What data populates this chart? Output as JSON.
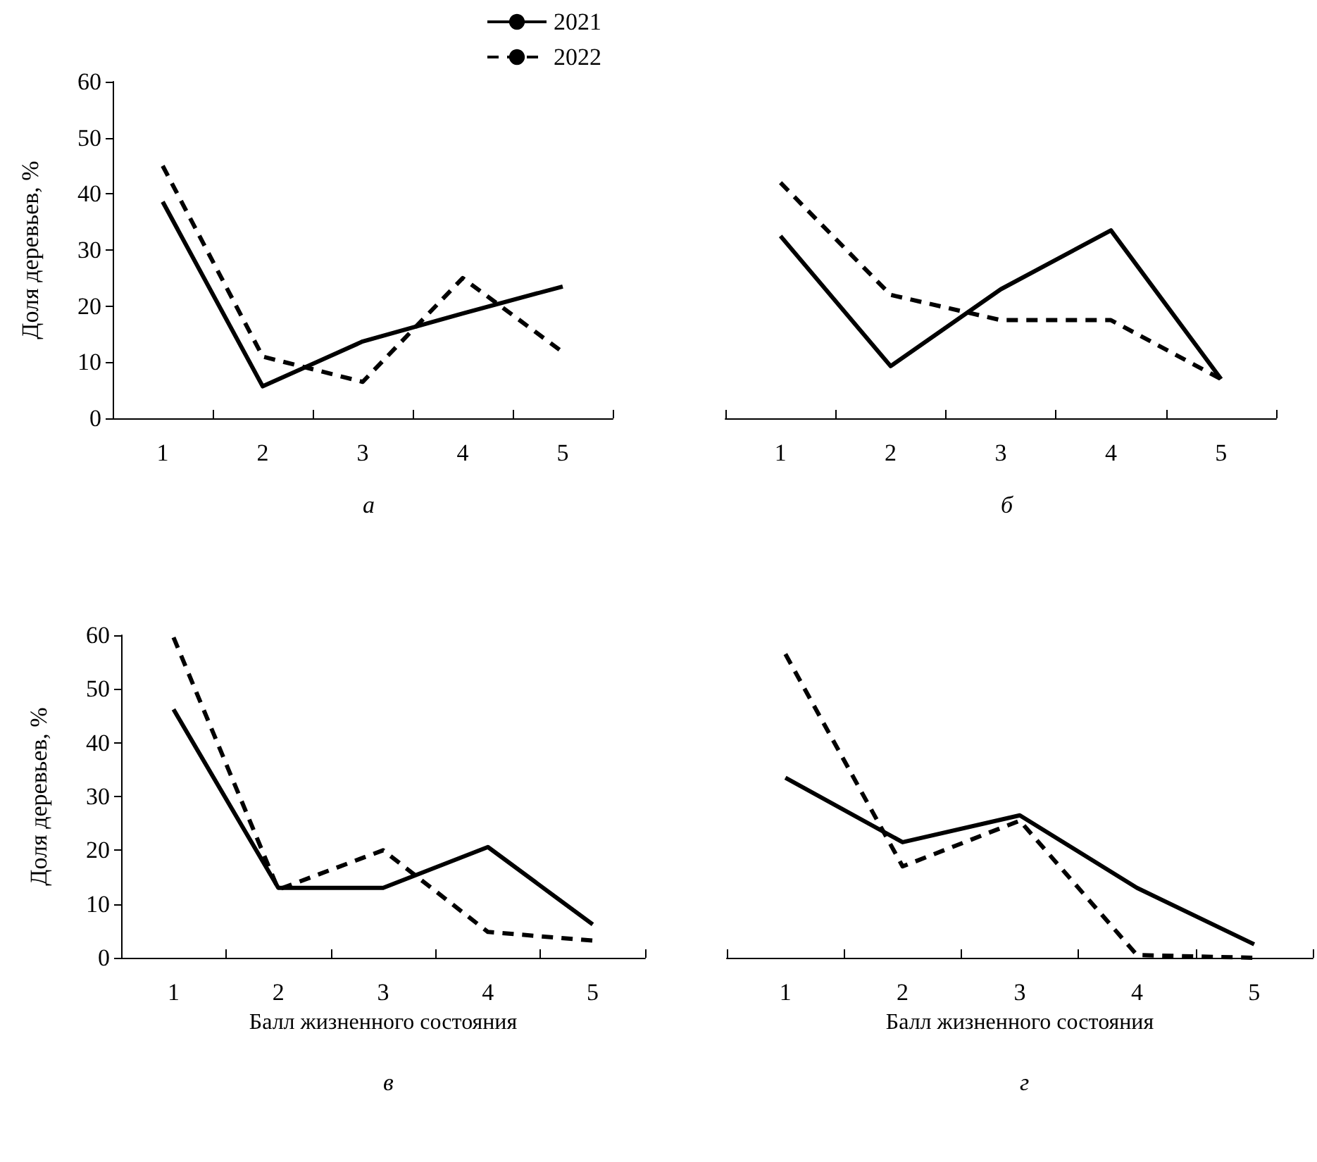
{
  "chart_data": [
    {
      "type": "line",
      "title": "а",
      "ylabel": "Доля деревьев, %",
      "categories": [
        "1",
        "2",
        "3",
        "4",
        "5"
      ],
      "ylim": [
        0,
        60
      ],
      "yticks": [
        0,
        10,
        20,
        30,
        40,
        50,
        60
      ],
      "legend": "top right",
      "grid": false,
      "marker": "none",
      "series": [
        {
          "name": "2021",
          "color": "#000000",
          "line_style": "solid",
          "values": [
            38.6,
            5.7,
            13.7,
            18.7,
            23.5
          ]
        },
        {
          "name": "2022",
          "color": "#000000",
          "line_style": "dashed",
          "values": [
            45,
            11,
            6.5,
            25,
            11.8
          ]
        }
      ]
    },
    {
      "type": "line",
      "title": "б",
      "categories": [
        "1",
        "2",
        "3",
        "4",
        "5"
      ],
      "ylim": [
        0,
        60
      ],
      "tick_labels": "x",
      "grid": false,
      "marker": "none",
      "series": [
        {
          "name": "2021",
          "color": "#000000",
          "line_style": "solid",
          "values": [
            32.5,
            9.3,
            23,
            33.5,
            7
          ]
        },
        {
          "name": "2022",
          "color": "#000000",
          "line_style": "dashed",
          "values": [
            42,
            22,
            17.5,
            17.5,
            7
          ]
        }
      ]
    },
    {
      "type": "line",
      "title": "в",
      "ylabel": "Доля деревьев, %",
      "xlabel": "Балл жизненного состояния",
      "categories": [
        "1",
        "2",
        "3",
        "4",
        "5"
      ],
      "ylim": [
        0,
        60
      ],
      "yticks": [
        0,
        10,
        20,
        30,
        40,
        50,
        60
      ],
      "grid": false,
      "marker": "none",
      "series": [
        {
          "name": "2021",
          "color": "#000000",
          "line_style": "solid",
          "values": [
            46.2,
            13,
            13,
            20.6,
            6.2
          ]
        },
        {
          "name": "2022",
          "color": "#000000",
          "line_style": "dashed",
          "values": [
            59.6,
            12.7,
            20,
            4.8,
            3.2
          ]
        }
      ]
    },
    {
      "type": "line",
      "title": "г",
      "xlabel": "Балл жизненного состояния",
      "categories": [
        "1",
        "2",
        "3",
        "4",
        "5"
      ],
      "ylim": [
        0,
        60
      ],
      "tick_labels": "x",
      "grid": false,
      "marker": "none",
      "series": [
        {
          "name": "2021",
          "color": "#000000",
          "line_style": "solid",
          "values": [
            33.5,
            21.5,
            26.5,
            13,
            2.5
          ]
        },
        {
          "name": "2022",
          "color": "#000000",
          "line_style": "dashed",
          "values": [
            56.5,
            17,
            25.5,
            0.5,
            0
          ]
        }
      ]
    }
  ]
}
